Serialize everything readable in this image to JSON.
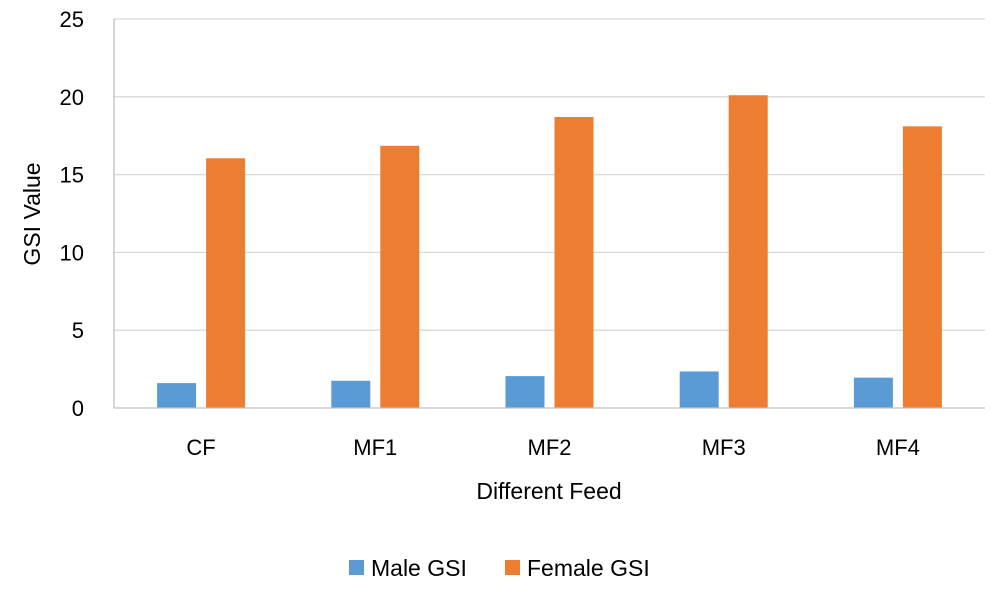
{
  "chart_data": {
    "type": "bar",
    "categories": [
      "CF",
      "MF1",
      "MF2",
      "MF3",
      "MF4"
    ],
    "series": [
      {
        "name": "Male GSI",
        "values": [
          1.6,
          1.75,
          2.05,
          2.35,
          1.95
        ],
        "color": "#5B9BD5"
      },
      {
        "name": "Female GSI",
        "values": [
          16.05,
          16.85,
          18.7,
          20.1,
          18.1
        ],
        "color": "#ED7D31"
      }
    ],
    "title": "",
    "xlabel": "Different Feed",
    "ylabel": "GSI Value",
    "ylim": [
      0,
      25
    ],
    "yticks": [
      0,
      5,
      10,
      15,
      20,
      25
    ],
    "grid": true,
    "legend_position": "bottom",
    "grid_color": "#D9D9D9",
    "axis_color": "#BFBFBF"
  }
}
